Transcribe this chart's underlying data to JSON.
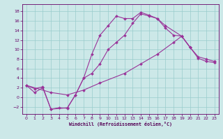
{
  "xlabel": "Windchill (Refroidissement éolien,°C)",
  "bg_color": "#cce8e8",
  "line_color": "#993399",
  "grid_color": "#99cccc",
  "xlim": [
    -0.5,
    23.5
  ],
  "ylim": [
    -3.5,
    19.5
  ],
  "xticks": [
    0,
    1,
    2,
    3,
    4,
    5,
    6,
    7,
    8,
    9,
    10,
    11,
    12,
    13,
    14,
    15,
    16,
    17,
    18,
    19,
    20,
    21,
    22,
    23
  ],
  "yticks": [
    -2,
    0,
    2,
    4,
    6,
    8,
    10,
    12,
    14,
    16,
    18
  ],
  "line1_x": [
    0,
    1,
    2,
    3,
    4,
    5,
    6,
    7,
    8,
    9,
    10,
    11,
    12,
    13,
    14,
    15,
    16,
    17,
    18,
    19,
    20,
    21,
    22,
    23
  ],
  "line1_y": [
    2.5,
    1.0,
    2.0,
    -2.5,
    -2.2,
    -2.3,
    0.5,
    4.0,
    9.0,
    13.0,
    15.0,
    17.0,
    16.5,
    16.5,
    17.8,
    17.2,
    16.5,
    14.5,
    13.0,
    12.8,
    10.5,
    8.2,
    7.5,
    7.3
  ],
  "line2_x": [
    0,
    1,
    2,
    3,
    5,
    6,
    7,
    8,
    9,
    10,
    11,
    12,
    13,
    14,
    15,
    16,
    17,
    19,
    20
  ],
  "line2_y": [
    2.5,
    1.8,
    2.2,
    -2.5,
    -2.2,
    0.5,
    4.0,
    5.0,
    7.0,
    10.0,
    11.5,
    13.0,
    15.5,
    17.5,
    17.0,
    16.5,
    15.0,
    12.8,
    10.5
  ],
  "line3_x": [
    0,
    3,
    5,
    7,
    9,
    12,
    14,
    16,
    18,
    19,
    20,
    21,
    22,
    23
  ],
  "line3_y": [
    2.5,
    1.0,
    0.5,
    1.5,
    3.0,
    5.0,
    7.0,
    9.0,
    11.5,
    12.8,
    10.5,
    8.5,
    8.0,
    7.5
  ]
}
